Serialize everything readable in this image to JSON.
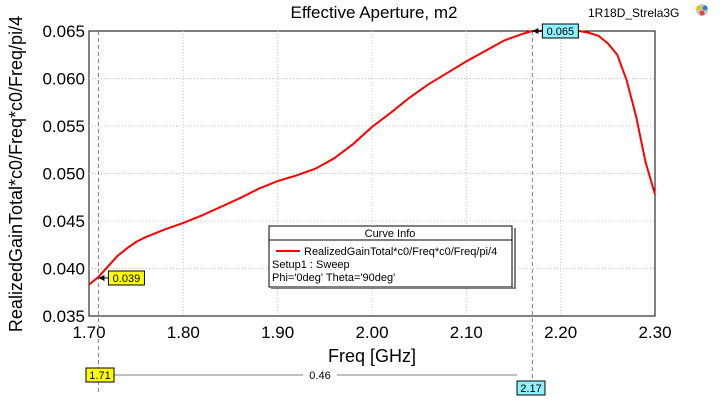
{
  "header": {
    "title": "Effective Aperture, m2",
    "design_name": "1R18D_Strela3G"
  },
  "legend": {
    "title": "Curve Info",
    "series_label": "RealizedGainTotal*c0/Freq*c0/Freq/pi/4",
    "line1": "Setup1 : Sweep",
    "line2": "Phi='0deg' Theta='90deg'"
  },
  "markers": [
    {
      "x": 1.71,
      "y": 0.039,
      "label": "0.039",
      "color": "#ffff00"
    },
    {
      "x": 2.17,
      "y": 0.065,
      "label": "0.065",
      "color": "#8ff1ff"
    }
  ],
  "delta": {
    "left_label": "1.71",
    "right_label": "2.17",
    "value_label": "0.46",
    "left_color": "#ffff00",
    "right_color": "#8ff1ff"
  },
  "chart_data": {
    "type": "line",
    "title": "Effective Aperture, m2",
    "xlabel": "Freq [GHz]",
    "ylabel": "RealizedGainTotal*c0/Freq*c0/Freq/pi/4",
    "xlim": [
      1.7,
      2.3
    ],
    "ylim": [
      0.035,
      0.065
    ],
    "xticks": [
      "1.70",
      "1.80",
      "1.90",
      "2.00",
      "2.10",
      "2.20",
      "2.30"
    ],
    "yticks": [
      "0.035",
      "0.040",
      "0.045",
      "0.050",
      "0.055",
      "0.060",
      "0.065"
    ],
    "grid": true,
    "series": [
      {
        "name": "RealizedGainTotal*c0/Freq*c0/Freq/pi/4",
        "color": "#ff0000",
        "x": [
          1.7,
          1.71,
          1.72,
          1.73,
          1.74,
          1.75,
          1.76,
          1.78,
          1.8,
          1.82,
          1.84,
          1.86,
          1.88,
          1.9,
          1.92,
          1.94,
          1.96,
          1.98,
          2.0,
          2.02,
          2.04,
          2.06,
          2.08,
          2.1,
          2.12,
          2.14,
          2.16,
          2.17,
          2.18,
          2.2,
          2.22,
          2.23,
          2.24,
          2.25,
          2.26,
          2.27,
          2.28,
          2.29,
          2.3
        ],
        "y": [
          0.0383,
          0.0391,
          0.0402,
          0.0413,
          0.0421,
          0.0428,
          0.0433,
          0.0441,
          0.0448,
          0.0456,
          0.0465,
          0.0474,
          0.0484,
          0.0492,
          0.0498,
          0.0505,
          0.0516,
          0.0531,
          0.0549,
          0.0564,
          0.058,
          0.0594,
          0.0606,
          0.0618,
          0.0629,
          0.064,
          0.0647,
          0.065,
          0.065,
          0.0648,
          0.065,
          0.0648,
          0.0645,
          0.0637,
          0.0625,
          0.0598,
          0.056,
          0.0512,
          0.0478
        ]
      }
    ]
  }
}
